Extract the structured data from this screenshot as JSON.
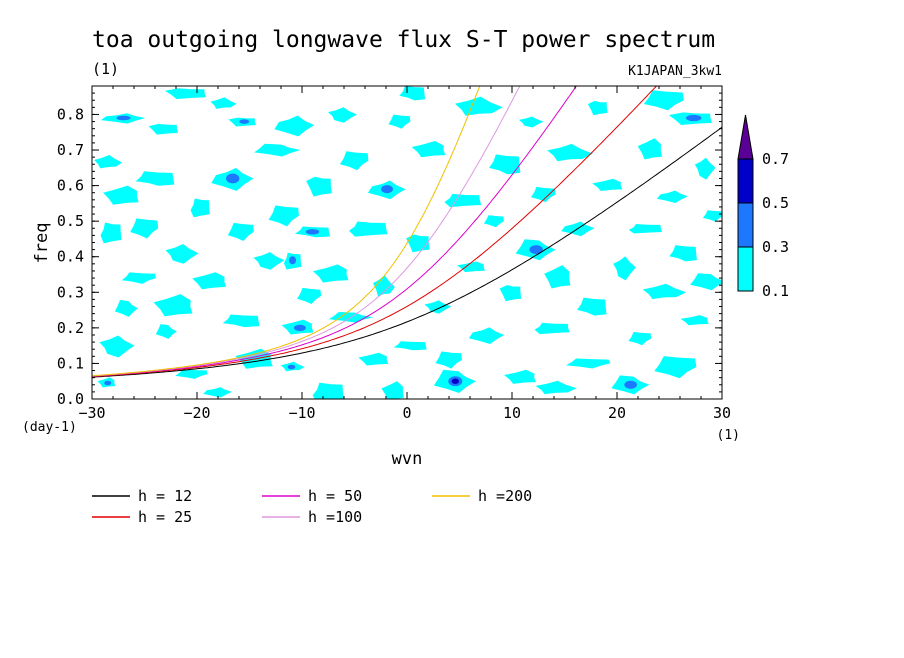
{
  "chart_data": {
    "type": "heatmap",
    "title": "toa outgoing longwave flux S-T power spectrum",
    "units_label": "(1)",
    "dataset_label": "K1JAPAN_3kw1",
    "xlabel": "wvn",
    "ylabel": "freq",
    "x_unit": "(1)",
    "y_unit": "(day-1)",
    "xlim": [
      -30,
      30
    ],
    "ylim": [
      0.0,
      0.88
    ],
    "x_ticks": [
      -30,
      -20,
      -10,
      0,
      10,
      20,
      30
    ],
    "x_tick_labels": [
      "−30",
      "−20",
      "−10",
      "0",
      "10",
      "20",
      "30"
    ],
    "y_ticks": [
      0.0,
      0.1,
      0.2,
      0.3,
      0.4,
      0.5,
      0.6,
      0.7,
      0.8
    ],
    "y_tick_labels": [
      "0.0",
      "0.1",
      "0.2",
      "0.3",
      "0.4",
      "0.5",
      "0.6",
      "0.7",
      "0.8"
    ],
    "colorbar": {
      "levels": [
        0.1,
        0.3,
        0.5,
        0.7
      ],
      "labels": [
        "0.1",
        "0.3",
        "0.5",
        "0.7"
      ],
      "colors": [
        "#00ffff",
        "#1e78ff",
        "#0000c8",
        "#5a0096"
      ],
      "extend": "max"
    },
    "series": [
      {
        "name": "h = 12",
        "h": 12,
        "color": "#000000"
      },
      {
        "name": "h = 25",
        "h": 25,
        "color": "#e00000"
      },
      {
        "name": "h = 50",
        "h": 50,
        "color": "#dd00cc"
      },
      {
        "name": "h =100",
        "h": 100,
        "color": "#dd99dd"
      },
      {
        "name": "h =200",
        "h": 200,
        "color": "#f0c000"
      }
    ],
    "patches": [
      {
        "x": -28.5,
        "y": 0.045,
        "level": 1
      },
      {
        "x": -27.8,
        "y": 0.15,
        "level": 0
      },
      {
        "x": -26.7,
        "y": 0.255,
        "level": 0
      },
      {
        "x": -25.5,
        "y": 0.34,
        "level": 0
      },
      {
        "x": -28.2,
        "y": 0.47,
        "level": 0
      },
      {
        "x": -27.0,
        "y": 0.57,
        "level": 0
      },
      {
        "x": -28.6,
        "y": 0.665,
        "level": 0
      },
      {
        "x": -27.0,
        "y": 0.79,
        "level": 1
      },
      {
        "x": -25.0,
        "y": 0.48,
        "level": 0
      },
      {
        "x": -24.0,
        "y": 0.62,
        "level": 0
      },
      {
        "x": -23.0,
        "y": 0.76,
        "level": 0
      },
      {
        "x": -22.0,
        "y": 0.26,
        "level": 0
      },
      {
        "x": -21.6,
        "y": 0.41,
        "level": 0
      },
      {
        "x": -22.9,
        "y": 0.19,
        "level": 0
      },
      {
        "x": -20.5,
        "y": 0.07,
        "level": 0
      },
      {
        "x": -19.7,
        "y": 0.54,
        "level": 0
      },
      {
        "x": -18.6,
        "y": 0.33,
        "level": 0
      },
      {
        "x": -17.6,
        "y": 0.83,
        "level": 0
      },
      {
        "x": -16.6,
        "y": 0.62,
        "level": 1
      },
      {
        "x": -15.8,
        "y": 0.47,
        "level": 0
      },
      {
        "x": -15.8,
        "y": 0.22,
        "level": 0
      },
      {
        "x": -15.5,
        "y": 0.78,
        "level": 1
      },
      {
        "x": -14.3,
        "y": 0.11,
        "level": 0
      },
      {
        "x": -13.3,
        "y": 0.39,
        "level": 0
      },
      {
        "x": -12.3,
        "y": 0.7,
        "level": 0
      },
      {
        "x": -11.7,
        "y": 0.515,
        "level": 0
      },
      {
        "x": -10.9,
        "y": 0.39,
        "level": 1
      },
      {
        "x": -10.2,
        "y": 0.2,
        "level": 1
      },
      {
        "x": -11.0,
        "y": 0.09,
        "level": 1
      },
      {
        "x": -10.7,
        "y": 0.77,
        "level": 0
      },
      {
        "x": -9.3,
        "y": 0.29,
        "level": 0
      },
      {
        "x": -9.0,
        "y": 0.47,
        "level": 1
      },
      {
        "x": -8.2,
        "y": 0.6,
        "level": 0
      },
      {
        "x": -7.0,
        "y": 0.35,
        "level": 0
      },
      {
        "x": -6.3,
        "y": 0.8,
        "level": 0
      },
      {
        "x": -5.3,
        "y": 0.23,
        "level": 0
      },
      {
        "x": -5.0,
        "y": 0.67,
        "level": 0
      },
      {
        "x": -3.7,
        "y": 0.48,
        "level": 0
      },
      {
        "x": -3.0,
        "y": 0.11,
        "level": 0
      },
      {
        "x": -2.3,
        "y": 0.315,
        "level": 0
      },
      {
        "x": -1.9,
        "y": 0.59,
        "level": 1
      },
      {
        "x": -0.7,
        "y": 0.78,
        "level": 0
      },
      {
        "x": 0.3,
        "y": 0.15,
        "level": 0
      },
      {
        "x": 1.2,
        "y": 0.44,
        "level": 0
      },
      {
        "x": 2.3,
        "y": 0.7,
        "level": 0
      },
      {
        "x": 2.8,
        "y": 0.26,
        "level": 0
      },
      {
        "x": 4.6,
        "y": 0.05,
        "level": 2
      },
      {
        "x": 4.0,
        "y": 0.11,
        "level": 0
      },
      {
        "x": 5.3,
        "y": 0.56,
        "level": 0
      },
      {
        "x": 6.3,
        "y": 0.37,
        "level": 0
      },
      {
        "x": 6.6,
        "y": 0.82,
        "level": 0
      },
      {
        "x": 7.6,
        "y": 0.18,
        "level": 0
      },
      {
        "x": 8.3,
        "y": 0.5,
        "level": 0
      },
      {
        "x": 9.3,
        "y": 0.66,
        "level": 0
      },
      {
        "x": 10.0,
        "y": 0.3,
        "level": 0
      },
      {
        "x": 11.0,
        "y": 0.06,
        "level": 0
      },
      {
        "x": 11.7,
        "y": 0.78,
        "level": 0
      },
      {
        "x": 12.3,
        "y": 0.42,
        "level": 1
      },
      {
        "x": 13.0,
        "y": 0.575,
        "level": 0
      },
      {
        "x": 13.8,
        "y": 0.2,
        "level": 0
      },
      {
        "x": 14.5,
        "y": 0.34,
        "level": 0
      },
      {
        "x": 15.3,
        "y": 0.69,
        "level": 0
      },
      {
        "x": 16.3,
        "y": 0.48,
        "level": 0
      },
      {
        "x": 17.3,
        "y": 0.1,
        "level": 0
      },
      {
        "x": 17.6,
        "y": 0.26,
        "level": 0
      },
      {
        "x": 18.3,
        "y": 0.82,
        "level": 0
      },
      {
        "x": 19.3,
        "y": 0.6,
        "level": 0
      },
      {
        "x": 20.6,
        "y": 0.37,
        "level": 0
      },
      {
        "x": 21.3,
        "y": 0.04,
        "level": 1
      },
      {
        "x": 22.2,
        "y": 0.17,
        "level": 0
      },
      {
        "x": 22.7,
        "y": 0.48,
        "level": 0
      },
      {
        "x": 23.3,
        "y": 0.7,
        "level": 0
      },
      {
        "x": 24.3,
        "y": 0.3,
        "level": 0
      },
      {
        "x": 25.3,
        "y": 0.57,
        "level": 0
      },
      {
        "x": 25.6,
        "y": 0.09,
        "level": 0
      },
      {
        "x": 26.3,
        "y": 0.41,
        "level": 0
      },
      {
        "x": 27.3,
        "y": 0.79,
        "level": 1
      },
      {
        "x": 27.6,
        "y": 0.22,
        "level": 0
      },
      {
        "x": 28.3,
        "y": 0.65,
        "level": 0
      },
      {
        "x": 28.7,
        "y": 0.33,
        "level": 0
      },
      {
        "x": 29.2,
        "y": 0.515,
        "level": 0
      },
      {
        "x": -7.5,
        "y": 0.02,
        "level": 0
      },
      {
        "x": -1.2,
        "y": 0.02,
        "level": 0
      },
      {
        "x": 14.0,
        "y": 0.03,
        "level": 0
      },
      {
        "x": -18.0,
        "y": 0.02,
        "level": 0
      },
      {
        "x": 24.5,
        "y": 0.84,
        "level": 0
      },
      {
        "x": 0.5,
        "y": 0.86,
        "level": 0
      },
      {
        "x": -20.8,
        "y": 0.86,
        "level": 0
      }
    ]
  }
}
